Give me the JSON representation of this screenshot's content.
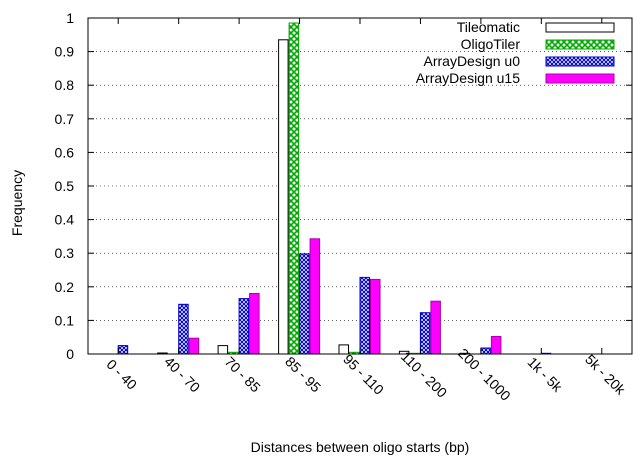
{
  "chart_data": {
    "type": "bar",
    "title": "",
    "xlabel": "Distances between oligo starts (bp)",
    "ylabel": "Frequency",
    "ylim": [
      0,
      1
    ],
    "yticks": [
      "0",
      "0.1",
      "0.2",
      "0.3",
      "0.4",
      "0.5",
      "0.6",
      "0.7",
      "0.8",
      "0.9",
      "1"
    ],
    "grid": "horizontal dotted",
    "legend_position": "top-right",
    "categories": [
      "0 - 40",
      "40 - 70",
      "70 - 85",
      "85 - 95",
      "95 - 110",
      "110 - 200",
      "200 - 1000",
      "1k - 5k",
      "5k - 20k"
    ],
    "series": [
      {
        "name": "Tileomatic",
        "color": "#000000",
        "fill": "none",
        "values": [
          0.0,
          0.003,
          0.025,
          0.935,
          0.027,
          0.008,
          0.002,
          0.0,
          0.0
        ]
      },
      {
        "name": "OligoTiler",
        "color": "#00aa00",
        "fill": "pattern-cross-green",
        "values": [
          0.0,
          0.0,
          0.005,
          0.985,
          0.005,
          0.002,
          0.0,
          0.0,
          0.0
        ]
      },
      {
        "name": "ArrayDesign u0",
        "color": "#0000cc",
        "fill": "pattern-dots-blue",
        "values": [
          0.025,
          0.148,
          0.165,
          0.298,
          0.228,
          0.123,
          0.018,
          0.002,
          0.0
        ]
      },
      {
        "name": "ArrayDesign u15",
        "color": "#ff00ff",
        "fill": "solid-magenta",
        "values": [
          0.0,
          0.047,
          0.18,
          0.343,
          0.222,
          0.157,
          0.052,
          0.0,
          0.0
        ]
      }
    ]
  }
}
